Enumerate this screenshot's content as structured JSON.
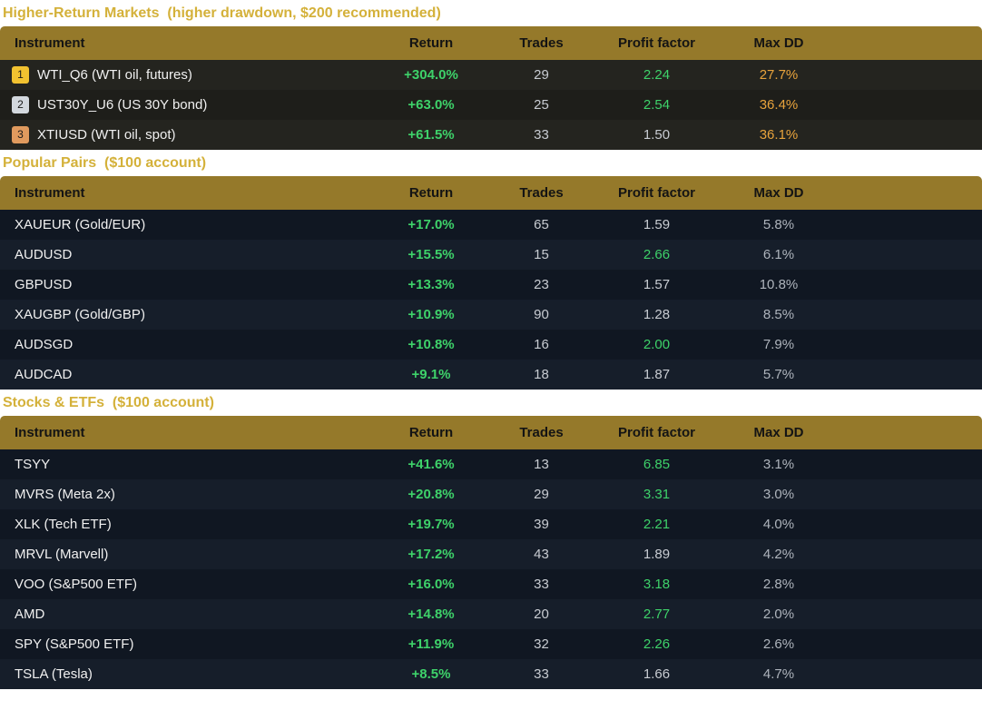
{
  "sections": [
    {
      "title": "Higher-Return Markets  (higher drawdown, $200 recommended)",
      "headers": {
        "instrument": "Instrument",
        "return": "Return",
        "trades": "Trades",
        "profit_factor": "Profit factor",
        "max_dd": "Max DD"
      },
      "rows": [
        {
          "rank": "1",
          "instrument": "WTI_Q6 (WTI oil, futures)",
          "return": "+304.0%",
          "trades": "29",
          "profit_factor": "2.24",
          "max_dd": "27.7%"
        },
        {
          "rank": "2",
          "instrument": "UST30Y_U6 (US 30Y bond)",
          "return": "+63.0%",
          "trades": "25",
          "profit_factor": "2.54",
          "max_dd": "36.4%"
        },
        {
          "rank": "3",
          "instrument": "XTIUSD (WTI oil, spot)",
          "return": "+61.5%",
          "trades": "33",
          "profit_factor": "1.50",
          "max_dd": "36.1%"
        }
      ]
    },
    {
      "title": "Popular Pairs  ($100 account)",
      "headers": {
        "instrument": "Instrument",
        "return": "Return",
        "trades": "Trades",
        "profit_factor": "Profit factor",
        "max_dd": "Max DD"
      },
      "rows": [
        {
          "instrument": "XAUEUR (Gold/EUR)",
          "return": "+17.0%",
          "trades": "65",
          "profit_factor": "1.59",
          "max_dd": "5.8%"
        },
        {
          "instrument": "AUDUSD",
          "return": "+15.5%",
          "trades": "15",
          "profit_factor": "2.66",
          "max_dd": "6.1%"
        },
        {
          "instrument": "GBPUSD",
          "return": "+13.3%",
          "trades": "23",
          "profit_factor": "1.57",
          "max_dd": "10.8%"
        },
        {
          "instrument": "XAUGBP (Gold/GBP)",
          "return": "+10.9%",
          "trades": "90",
          "profit_factor": "1.28",
          "max_dd": "8.5%"
        },
        {
          "instrument": "AUDSGD",
          "return": "+10.8%",
          "trades": "16",
          "profit_factor": "2.00",
          "max_dd": "7.9%"
        },
        {
          "instrument": "AUDCAD",
          "return": "+9.1%",
          "trades": "18",
          "profit_factor": "1.87",
          "max_dd": "5.7%"
        }
      ]
    },
    {
      "title": "Stocks & ETFs  ($100 account)",
      "headers": {
        "instrument": "Instrument",
        "return": "Return",
        "trades": "Trades",
        "profit_factor": "Profit factor",
        "max_dd": "Max DD"
      },
      "rows": [
        {
          "instrument": "TSYY",
          "return": "+41.6%",
          "trades": "13",
          "profit_factor": "6.85",
          "max_dd": "3.1%"
        },
        {
          "instrument": "MVRS (Meta 2x)",
          "return": "+20.8%",
          "trades": "29",
          "profit_factor": "3.31",
          "max_dd": "3.0%"
        },
        {
          "instrument": "XLK (Tech ETF)",
          "return": "+19.7%",
          "trades": "39",
          "profit_factor": "2.21",
          "max_dd": "4.0%"
        },
        {
          "instrument": "MRVL (Marvell)",
          "return": "+17.2%",
          "trades": "43",
          "profit_factor": "1.89",
          "max_dd": "4.2%"
        },
        {
          "instrument": "VOO (S&P500 ETF)",
          "return": "+16.0%",
          "trades": "33",
          "profit_factor": "3.18",
          "max_dd": "2.8%"
        },
        {
          "instrument": "AMD",
          "return": "+14.8%",
          "trades": "20",
          "profit_factor": "2.77",
          "max_dd": "2.0%"
        },
        {
          "instrument": "SPY (S&P500 ETF)",
          "return": "+11.9%",
          "trades": "32",
          "profit_factor": "2.26",
          "max_dd": "2.6%"
        },
        {
          "instrument": "TSLA (Tesla)",
          "return": "+8.5%",
          "trades": "33",
          "profit_factor": "1.66",
          "max_dd": "4.7%"
        }
      ]
    }
  ],
  "colors": {
    "title": "#d4b13a",
    "header_bg": "#95792a",
    "positive": "#3ed26a",
    "warning": "#e8a33c",
    "badge_gold": "#f2c230",
    "badge_silver": "#d3d8de",
    "badge_bronze": "#e09a5e"
  }
}
